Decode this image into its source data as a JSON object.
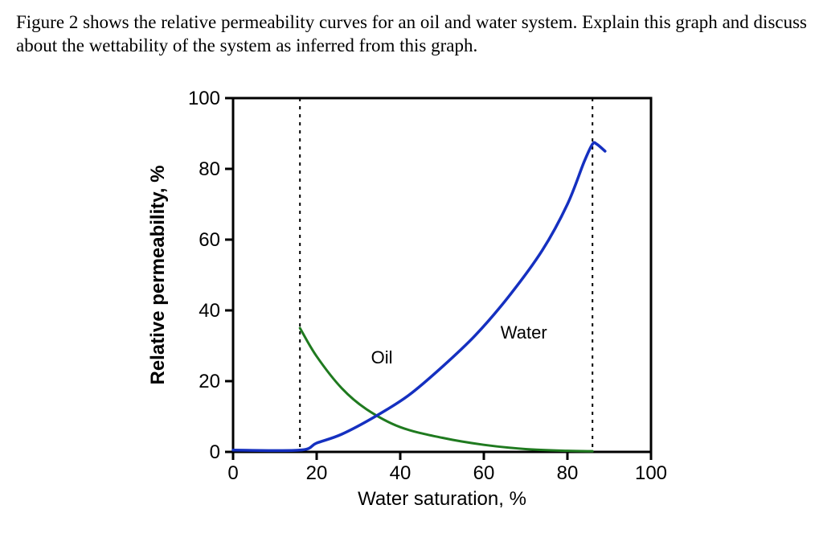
{
  "question_text": "Figure 2 shows the relative permeability curves for an oil and water system. Explain this graph and discuss about the wettability of the system as inferred from this graph.",
  "chart": {
    "type": "line",
    "background_color": "#ffffff",
    "axis_color": "#000000",
    "axis_width": 3,
    "tick_font_size": 24,
    "label_font_size": 24,
    "curve_label_font_size": 22,
    "font_family": "Arial, Helvetica, sans-serif",
    "xlabel": "Water saturation, %",
    "ylabel": "Relative permeability, %",
    "xlim": [
      0,
      100
    ],
    "ylim": [
      0,
      100
    ],
    "xticks": [
      0,
      20,
      40,
      60,
      80,
      100
    ],
    "yticks": [
      0,
      20,
      40,
      60,
      80,
      100
    ],
    "guide_lines": {
      "color": "#000000",
      "dash": "4,6",
      "width": 2,
      "x_values": [
        16,
        86
      ]
    },
    "series": [
      {
        "name": "Oil",
        "label": "Oil",
        "color": "#1f7a1f",
        "width": 3,
        "label_pos": {
          "sw": 33,
          "kr": 25
        },
        "points": [
          {
            "sw": 16,
            "kr": 35
          },
          {
            "sw": 20,
            "kr": 27
          },
          {
            "sw": 26,
            "kr": 18
          },
          {
            "sw": 32,
            "kr": 12
          },
          {
            "sw": 40,
            "kr": 7
          },
          {
            "sw": 50,
            "kr": 4
          },
          {
            "sw": 60,
            "kr": 2
          },
          {
            "sw": 70,
            "kr": 0.8
          },
          {
            "sw": 80,
            "kr": 0.3
          },
          {
            "sw": 86,
            "kr": 0.2
          }
        ]
      },
      {
        "name": "Water",
        "label": "Water",
        "color": "#1530c0",
        "width": 3.5,
        "label_pos": {
          "sw": 64,
          "kr": 32
        },
        "points": [
          {
            "sw": 0,
            "kr": 0.5
          },
          {
            "sw": 16,
            "kr": 0.5
          },
          {
            "sw": 20,
            "kr": 2.5
          },
          {
            "sw": 26,
            "kr": 5
          },
          {
            "sw": 34,
            "kr": 10
          },
          {
            "sw": 42,
            "kr": 16
          },
          {
            "sw": 50,
            "kr": 24
          },
          {
            "sw": 58,
            "kr": 33
          },
          {
            "sw": 66,
            "kr": 44
          },
          {
            "sw": 74,
            "kr": 57
          },
          {
            "sw": 80,
            "kr": 70
          },
          {
            "sw": 84,
            "kr": 82
          },
          {
            "sw": 86,
            "kr": 87
          },
          {
            "sw": 87,
            "kr": 87
          },
          {
            "sw": 89,
            "kr": 85
          }
        ]
      }
    ]
  }
}
